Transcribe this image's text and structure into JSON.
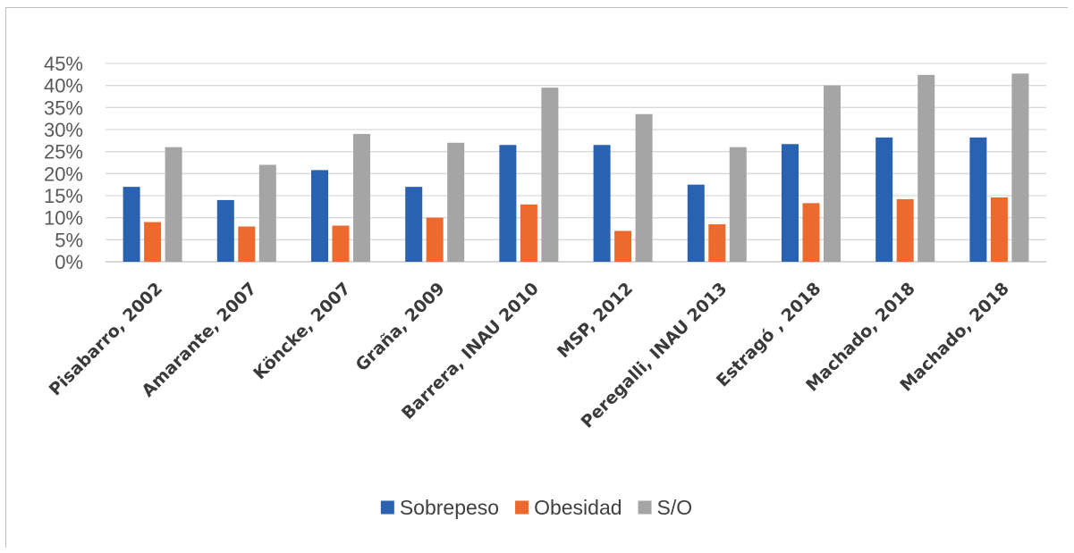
{
  "chart_data": {
    "type": "bar",
    "title": "",
    "xlabel": "",
    "ylabel": "",
    "categories": [
      "Pisabarro, 2002",
      "Amarante, 2007",
      "Köncke, 2007",
      "Graña, 2009",
      "Barrera, INAU 2010",
      "MSP, 2012",
      "Peregalli, INAU 2013",
      "Estragó , 2018",
      "Machado, 2018",
      "Machado, 2018"
    ],
    "series": [
      {
        "name": "Sobrepeso",
        "color": "#2a62b2",
        "values": [
          17,
          14,
          20.8,
          17,
          26.5,
          26.5,
          17.5,
          26.7,
          28.2,
          28.2
        ]
      },
      {
        "name": "Obesidad",
        "color": "#ed6a2f",
        "values": [
          9,
          8,
          8.2,
          10,
          13,
          7,
          8.5,
          13.3,
          14.2,
          14.6
        ]
      },
      {
        "name": "S/O",
        "color": "#a5a5a5",
        "values": [
          26,
          22,
          29,
          27,
          39.5,
          33.5,
          26,
          40,
          42.4,
          42.7
        ]
      }
    ],
    "ylim": [
      0,
      45
    ],
    "yticks": [
      "0%",
      "5%",
      "10%",
      "15%",
      "20%",
      "25%",
      "30%",
      "35%",
      "40%",
      "45%"
    ],
    "grid": true,
    "legend_position": "bottom"
  }
}
